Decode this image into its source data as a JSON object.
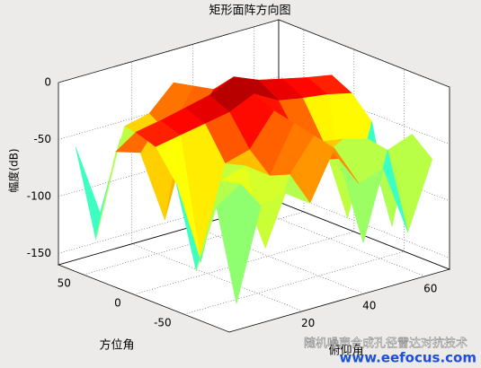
{
  "chart_data": {
    "type": "surface",
    "title": "矩形面阵方向图",
    "xlabel": "方位角",
    "ylabel": "俯仰角",
    "zlabel": "幅度(dB)",
    "x": [
      -90,
      -70,
      -50,
      -30,
      -10,
      10,
      30,
      50,
      70
    ],
    "y": [
      0,
      8,
      16,
      24,
      32,
      40,
      48,
      56,
      64
    ],
    "z": [
      [
        -140,
        -60,
        -55,
        -70,
        -28,
        -65,
        -58,
        -120,
        -62
      ],
      [
        -62,
        -48,
        -110,
        -52,
        -24,
        -50,
        -130,
        -55,
        -47
      ],
      [
        -125,
        -52,
        -45,
        -60,
        -20,
        -58,
        -46,
        -52,
        -135
      ],
      [
        -55,
        -130,
        -50,
        -44,
        -16,
        -47,
        -55,
        -128,
        -50
      ],
      [
        -30,
        -26,
        -22,
        -18,
        -8,
        -20,
        -24,
        -27,
        -32
      ],
      [
        -24,
        -20,
        -15,
        -10,
        0,
        -9,
        -14,
        -19,
        -23
      ],
      [
        -48,
        -55,
        -120,
        -46,
        -18,
        -50,
        -115,
        -52,
        -57
      ],
      [
        -132,
        -50,
        -56,
        -58,
        -22,
        -54,
        -49,
        -125,
        -60
      ],
      [
        -58,
        -122,
        -52,
        -47,
        -26,
        -62,
        -56,
        -50,
        -138
      ]
    ],
    "xlim": [
      -95,
      75
    ],
    "ylim": [
      -4,
      68
    ],
    "zlim": [
      -160,
      0
    ],
    "xticks": [
      -50,
      0,
      50
    ],
    "yticks": [
      20,
      40,
      60
    ],
    "zticks": [
      -150,
      -100,
      -50,
      0
    ],
    "grid": true,
    "colormap": "jet",
    "annotations": [
      "随机噪声合成孔径雷达对抗技术",
      "www.eefocus.com"
    ]
  }
}
